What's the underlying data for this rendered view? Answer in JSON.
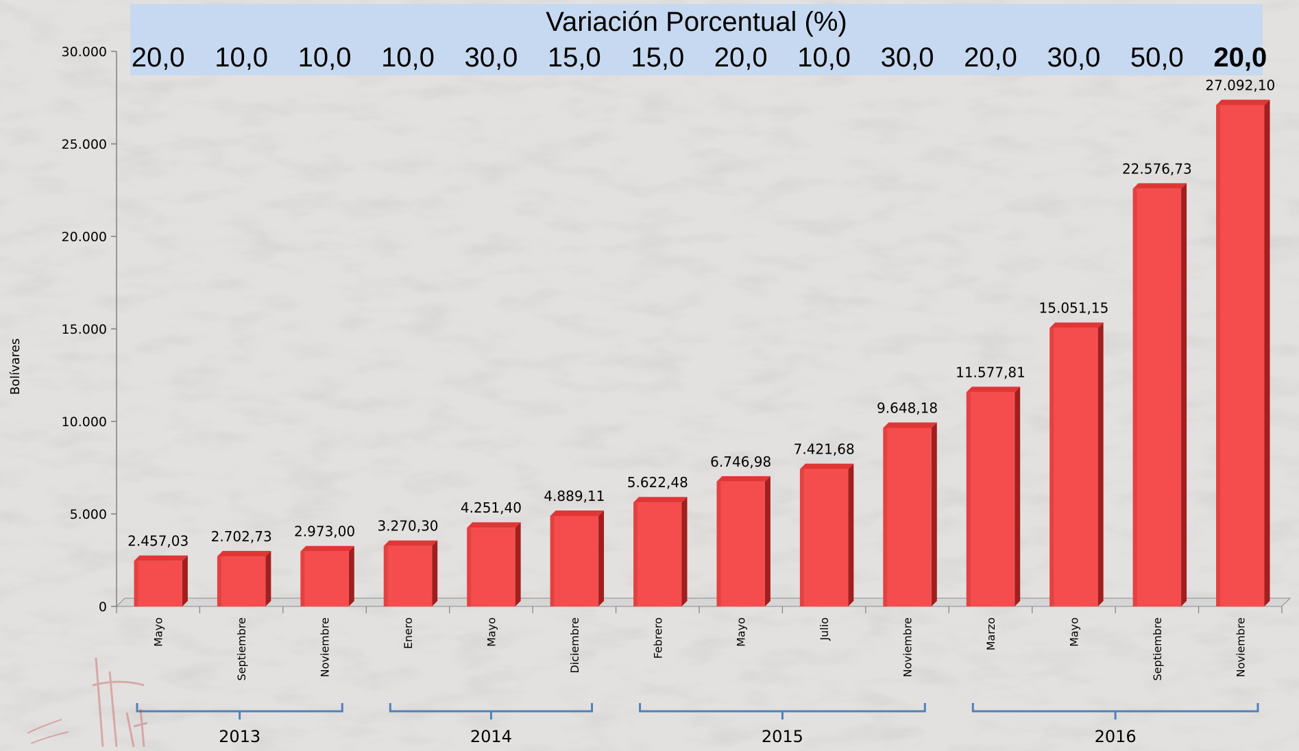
{
  "header": {
    "title": "Variación Porcentual (%)",
    "percentages": [
      "20,0",
      "10,0",
      "10,0",
      "10,0",
      "30,0",
      "15,0",
      "15,0",
      "20,0",
      "10,0",
      "30,0",
      "20,0",
      "30,0",
      "50,0",
      "20,0"
    ]
  },
  "colors": {
    "bar": "#f54d4d",
    "bar_side": "#a11f1f",
    "bar_top": "#e13636",
    "header_bg": "#c6d9f0",
    "bracket": "#4f81bd"
  },
  "chart_data": {
    "type": "bar",
    "ylabel": "Bolívares",
    "ylim": [
      0,
      30000
    ],
    "yticks": [
      "0",
      "5.000",
      "10.000",
      "15.000",
      "20.000",
      "25.000",
      "30.000"
    ],
    "categories": [
      "Mayo",
      "Septiembre",
      "Noviembre",
      "Enero",
      "Mayo",
      "Diciembre",
      "Febrero",
      "Mayo",
      "Julio",
      "Noviembre",
      "Marzo",
      "Mayo",
      "Septiembre",
      "Noviembre"
    ],
    "values": [
      2457.03,
      2702.73,
      2973.0,
      3270.3,
      4251.4,
      4889.11,
      5622.48,
      6746.98,
      7421.68,
      9648.18,
      11577.81,
      15051.15,
      22576.73,
      27092.1
    ],
    "data_labels": [
      "2.457,03",
      "2.702,73",
      "2.973,00",
      "3.270,30",
      "4.251,40",
      "4.889,11",
      "5.622,48",
      "6.746,98",
      "7.421,68",
      "9.648,18",
      "11.577,81",
      "15.051,15",
      "22.576,73",
      "27.092,10"
    ],
    "groups": [
      {
        "label": "2013",
        "count": 3
      },
      {
        "label": "2014",
        "count": 3
      },
      {
        "label": "2015",
        "count": 4
      },
      {
        "label": "2016",
        "count": 4
      }
    ],
    "grid": false,
    "legend": "none"
  }
}
